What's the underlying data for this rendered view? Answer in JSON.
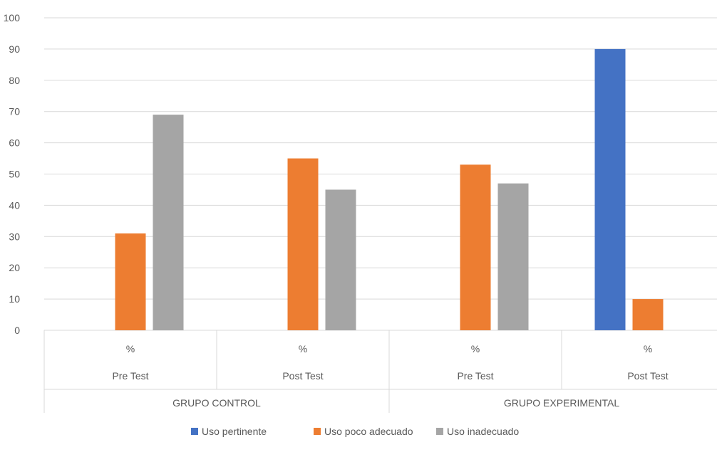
{
  "chart_data": {
    "type": "bar",
    "title": "",
    "xlabel": "",
    "ylabel": "",
    "ylim": [
      0,
      100
    ],
    "yticks": [
      0,
      10,
      20,
      30,
      40,
      50,
      60,
      70,
      80,
      90,
      100
    ],
    "grid": true,
    "legend_position": "bottom",
    "categories": [
      {
        "level1": "%",
        "level2": "Pre Test",
        "group": "GRUPO CONTROL"
      },
      {
        "level1": "%",
        "level2": "Post Test",
        "group": "GRUPO CONTROL"
      },
      {
        "level1": "%",
        "level2": "Pre Test",
        "group": "GRUPO EXPERIMENTAL"
      },
      {
        "level1": "%",
        "level2": "Post Test",
        "group": "GRUPO EXPERIMENTAL"
      }
    ],
    "groups": [
      "GRUPO CONTROL",
      "GRUPO EXPERIMENTAL"
    ],
    "series": [
      {
        "name": "Uso pertinente",
        "color": "#4472C4",
        "values": [
          0,
          0,
          0,
          90
        ]
      },
      {
        "name": "Uso poco adecuado",
        "color": "#ED7D31",
        "values": [
          31,
          55,
          53,
          10
        ]
      },
      {
        "name": "Uso inadecuado",
        "color": "#A5A5A5",
        "values": [
          69,
          45,
          47,
          0
        ]
      }
    ]
  }
}
